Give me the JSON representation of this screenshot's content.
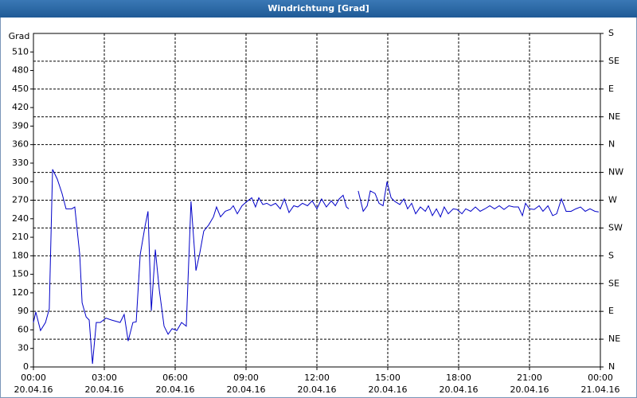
{
  "chart_data": {
    "type": "line",
    "title": "Windrichtung [Grad]",
    "y_label": "Grad",
    "x": [
      0,
      0.1,
      0.3,
      0.51,
      0.67,
      0.81,
      1.01,
      1.21,
      1.38,
      1.62,
      1.75,
      1.96,
      2.06,
      2.23,
      2.36,
      2.5,
      2.66,
      2.83,
      3.07,
      3.3,
      3.67,
      3.84,
      4.01,
      4.21,
      4.35,
      4.52,
      4.72,
      4.85,
      4.99,
      5.16,
      5.33,
      5.53,
      5.7,
      5.87,
      6.07,
      6.27,
      6.47,
      6.67,
      6.88,
      7.04,
      7.21,
      7.42,
      7.62,
      7.75,
      7.92,
      8.12,
      8.33,
      8.46,
      8.63,
      8.83,
      9.04,
      9.24,
      9.4,
      9.54,
      9.71,
      9.88,
      10.05,
      10.25,
      10.45,
      10.62,
      10.82,
      11.02,
      11.19,
      11.39,
      11.6,
      11.8,
      12.0,
      12.2,
      12.4,
      12.61,
      12.78,
      12.94,
      13.11,
      13.25,
      13.35,
      13.6,
      13.75,
      13.96,
      14.13,
      14.26,
      14.46,
      14.63,
      14.8,
      14.97,
      15.14,
      15.3,
      15.51,
      15.68,
      15.84,
      16.01,
      16.18,
      16.38,
      16.59,
      16.72,
      16.89,
      17.06,
      17.23,
      17.39,
      17.56,
      17.77,
      17.93,
      18.14,
      18.3,
      18.51,
      18.71,
      18.91,
      19.11,
      19.32,
      19.52,
      19.72,
      19.92,
      20.13,
      20.33,
      20.53,
      20.7,
      20.83,
      21.0,
      21.2,
      21.41,
      21.57,
      21.78,
      21.98,
      22.15,
      22.35,
      22.55,
      22.76,
      22.96,
      23.16,
      23.36,
      23.56,
      23.77,
      23.93
    ],
    "series": [
      {
        "name": "Windrichtung",
        "color": "#0000c8",
        "values": [
          72,
          89,
          59,
          72,
          94,
          320,
          304,
          281,
          256,
          256,
          259,
          182,
          104,
          81,
          76,
          5,
          72,
          72,
          79,
          76,
          72,
          85,
          42,
          72,
          73,
          182,
          227,
          252,
          91,
          190,
          124,
          66,
          53,
          62,
          59,
          72,
          66,
          268,
          156,
          184,
          220,
          230,
          243,
          259,
          243,
          252,
          255,
          261,
          248,
          261,
          268,
          274,
          259,
          274,
          263,
          265,
          261,
          265,
          256,
          272,
          250,
          261,
          259,
          265,
          261,
          269,
          256,
          272,
          259,
          269,
          261,
          272,
          278,
          259,
          256,
          null,
          285,
          252,
          261,
          285,
          281,
          265,
          261,
          300,
          274,
          268,
          263,
          272,
          256,
          265,
          248,
          259,
          252,
          261,
          245,
          256,
          243,
          259,
          248,
          256,
          255,
          248,
          256,
          252,
          259,
          252,
          256,
          261,
          256,
          261,
          255,
          261,
          259,
          259,
          245,
          265,
          256,
          255,
          261,
          252,
          261,
          245,
          248,
          272,
          252,
          252,
          256,
          259,
          252,
          256,
          252,
          251
        ]
      }
    ],
    "xlim": [
      0,
      24
    ],
    "xticks": [
      {
        "value": 0,
        "label": "00:00\n20.04.16"
      },
      {
        "value": 3,
        "label": "03:00\n20.04.16"
      },
      {
        "value": 6,
        "label": "06:00\n20.04.16"
      },
      {
        "value": 9,
        "label": "09:00\n20.04.16"
      },
      {
        "value": 12,
        "label": "12:00\n20.04.16"
      },
      {
        "value": 15,
        "label": "15:00\n20.04.16"
      },
      {
        "value": 18,
        "label": "18:00\n20.04.16"
      },
      {
        "value": 21,
        "label": "21:00\n20.04.16"
      },
      {
        "value": 24,
        "label": "00:00\n21.04.16"
      }
    ],
    "ylim": [
      0,
      540
    ],
    "yticks": [
      0,
      30,
      60,
      90,
      120,
      150,
      180,
      210,
      240,
      270,
      300,
      330,
      360,
      390,
      420,
      450,
      480,
      510
    ],
    "y2lim": [
      0,
      540
    ],
    "y2ticks": [
      {
        "value": 0,
        "label": "N"
      },
      {
        "value": 45,
        "label": "NE"
      },
      {
        "value": 90,
        "label": "E"
      },
      {
        "value": 135,
        "label": "SE"
      },
      {
        "value": 180,
        "label": "S"
      },
      {
        "value": 225,
        "label": "SW"
      },
      {
        "value": 270,
        "label": "W"
      },
      {
        "value": 315,
        "label": "NW"
      },
      {
        "value": 360,
        "label": "N"
      },
      {
        "value": 405,
        "label": "NE"
      },
      {
        "value": 450,
        "label": "E"
      },
      {
        "value": 495,
        "label": "SE"
      },
      {
        "value": 540,
        "label": "S"
      }
    ],
    "grid": "y2"
  }
}
